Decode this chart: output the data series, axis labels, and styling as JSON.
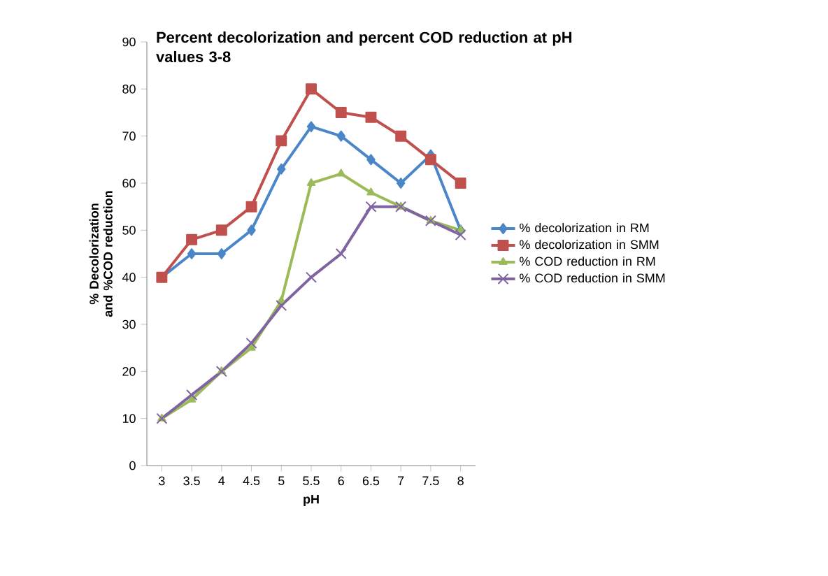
{
  "chart_data": {
    "type": "line",
    "title": "Percent decolorization and percent COD reduction at pH values 3-8",
    "xlabel": "pH",
    "ylabel": "% Decolorization and %COD reduction",
    "categories": [
      "3",
      "3.5",
      "4",
      "4.5",
      "5",
      "5.5",
      "6",
      "6.5",
      "7",
      "7.5",
      "8"
    ],
    "series": [
      {
        "name": "% decolorization in RM",
        "color": "#4a86c8",
        "marker": "diamond",
        "values": [
          40,
          45,
          45,
          50,
          63,
          72,
          70,
          65,
          60,
          66,
          50
        ]
      },
      {
        "name": "% decolorization in SMM",
        "color": "#c0504d",
        "marker": "square",
        "values": [
          40,
          48,
          50,
          55,
          69,
          80,
          75,
          74,
          70,
          65,
          60
        ]
      },
      {
        "name": "% COD reduction in RM",
        "color": "#9bbb59",
        "marker": "triangle",
        "values": [
          10,
          14,
          20,
          25,
          35,
          60,
          62,
          58,
          55,
          52,
          50
        ]
      },
      {
        "name": "% COD reduction in SMM",
        "color": "#8064a2",
        "marker": "cross",
        "values": [
          10,
          15,
          20,
          26,
          34,
          40,
          45,
          55,
          55,
          52,
          49
        ]
      }
    ],
    "ylim": [
      0,
      90
    ],
    "yticks": [
      0,
      10,
      20,
      30,
      40,
      50,
      60,
      70,
      80,
      90
    ],
    "grid": false,
    "legend": "right"
  }
}
